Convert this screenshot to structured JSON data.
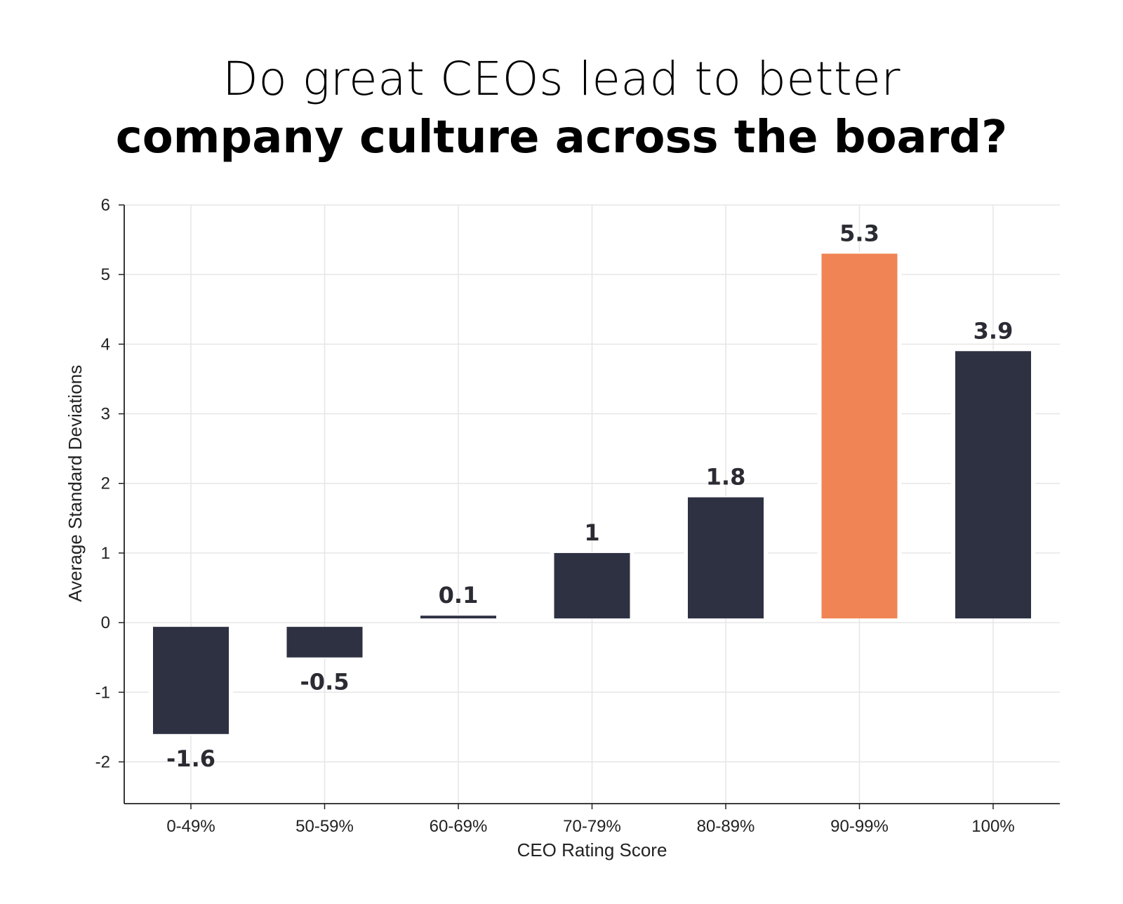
{
  "title": {
    "line1": "Do great CEOs lead to better",
    "line2": "company culture across the board?"
  },
  "colors": {
    "bar": "#2e3142",
    "highlight": "#f08454",
    "grid": "#e6e6e6",
    "axis": "#222222",
    "label": "#2b2b33"
  },
  "chart_data": {
    "type": "bar",
    "title": "Do great CEOs lead to better company culture across the board?",
    "xlabel": "CEO Rating Score",
    "ylabel": "Average Standard Deviations",
    "categories": [
      "0-49%",
      "50-59%",
      "60-69%",
      "70-79%",
      "80-89%",
      "90-99%",
      "100%"
    ],
    "values": [
      -1.6,
      -0.5,
      0.1,
      1,
      1.8,
      5.3,
      3.9
    ],
    "data_labels": [
      "-1.6",
      "-0.5",
      "0.1",
      "1",
      "1.8",
      "5.3",
      "3.9"
    ],
    "highlight_category": "90-99%",
    "ylim": [
      -2.6,
      6
    ],
    "yticks": [
      -2,
      -1,
      0,
      1,
      2,
      3,
      4,
      5,
      6
    ],
    "grid": true,
    "legend": "none"
  }
}
